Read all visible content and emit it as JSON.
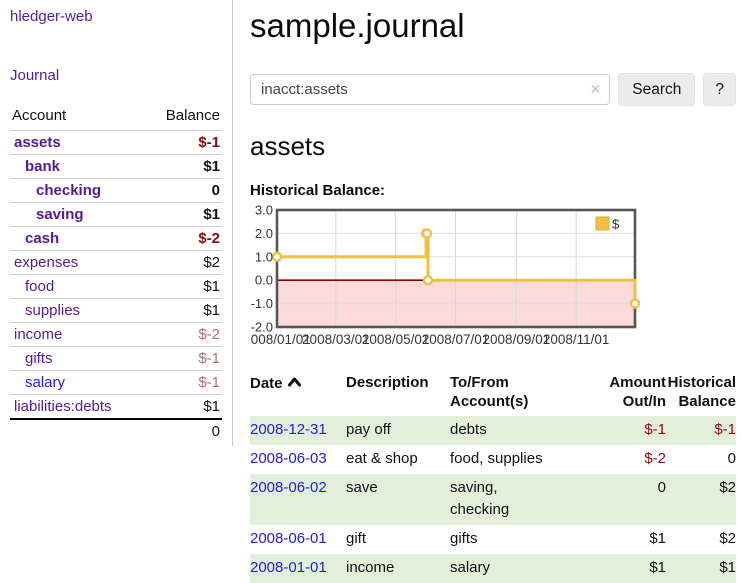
{
  "app": {
    "brand": "hledger-web"
  },
  "colors": {
    "accent_purple": "#551a9b",
    "link_blue": "#2020e0",
    "negative_strong": "#8b0c0c",
    "negative_soft": "#b36b6b",
    "row_stripe_green": "#e2efdb",
    "series_gold": "#edc240",
    "negative_region_pink": "#fbdada",
    "zero_line_red": "#8b0000"
  },
  "sidebar": {
    "nav_journal": "Journal",
    "accounts_table": {
      "header_account": "Account",
      "header_balance": "Balance",
      "rows": [
        {
          "account": "assets",
          "balance": "$-1",
          "indent": 0,
          "bold": true,
          "tone": "neg",
          "link_color": "purple"
        },
        {
          "account": "bank",
          "balance": "$1",
          "indent": 1,
          "bold": true,
          "tone": "pos",
          "link_color": "purple"
        },
        {
          "account": "checking",
          "balance": "0",
          "indent": 2,
          "bold": true,
          "tone": "pos",
          "link_color": "purple"
        },
        {
          "account": "saving",
          "balance": "$1",
          "indent": 2,
          "bold": true,
          "tone": "pos",
          "link_color": "purple"
        },
        {
          "account": "cash",
          "balance": "$-2",
          "indent": 1,
          "bold": true,
          "tone": "neg",
          "link_color": "purple"
        },
        {
          "account": "expenses",
          "balance": "$2",
          "indent": 0,
          "bold": false,
          "tone": "pos",
          "link_color": "purple"
        },
        {
          "account": "food",
          "balance": "$1",
          "indent": 1,
          "bold": false,
          "tone": "pos",
          "link_color": "purple"
        },
        {
          "account": "supplies",
          "balance": "$1",
          "indent": 1,
          "bold": false,
          "tone": "pos",
          "link_color": "purple"
        },
        {
          "account": "income",
          "balance": "$-2",
          "indent": 0,
          "bold": false,
          "tone": "soft",
          "link_color": "purple"
        },
        {
          "account": "gifts",
          "balance": "$-1",
          "indent": 1,
          "bold": false,
          "tone": "soft",
          "link_color": "purple"
        },
        {
          "account": "salary",
          "balance": "$-1",
          "indent": 1,
          "bold": false,
          "tone": "soft",
          "link_color": "blue"
        },
        {
          "account": "liabilities:debts",
          "balance": "$1",
          "indent": 0,
          "bold": false,
          "tone": "pos",
          "link_color": "purple"
        }
      ],
      "total": "0"
    }
  },
  "main": {
    "title": "sample.journal",
    "search": {
      "value": "inacct:assets",
      "clear_icon": "✕",
      "search_button": "Search",
      "help_button": "?"
    },
    "account_heading": "assets",
    "chart_heading": "Historical Balance:",
    "register": {
      "headers": {
        "date": "Date",
        "description": "Description",
        "tofrom": "To/From\nAccount(s)",
        "amount": "Amount\nOut/In",
        "balance": "Historical\nBalance"
      },
      "rows": [
        {
          "date": "2008-12-31",
          "description": "pay off",
          "accounts": "debts",
          "amount": "$-1",
          "balance": "$-1"
        },
        {
          "date": "2008-06-03",
          "description": "eat & shop",
          "accounts": "food, supplies",
          "amount": "$-2",
          "balance": "0"
        },
        {
          "date": "2008-06-02",
          "description": "save",
          "accounts": "saving,\nchecking",
          "amount": "0",
          "balance": "$2"
        },
        {
          "date": "2008-06-01",
          "description": "gift",
          "accounts": "gifts",
          "amount": "$1",
          "balance": "$2"
        },
        {
          "date": "2008-01-01",
          "description": "income",
          "accounts": "salary",
          "amount": "$1",
          "balance": "$1"
        }
      ]
    }
  },
  "chart_data": {
    "type": "line",
    "step": true,
    "title": "Historical Balance:",
    "x_ticks": [
      "2008/01/01",
      "2008/03/01",
      "2008/05/01",
      "2008/07/01",
      "2008/09/01",
      "2008/11/01"
    ],
    "y_ticks": [
      3.0,
      2.0,
      1.0,
      0.0,
      -1.0,
      -2.0
    ],
    "xlim": [
      "2008/01/01",
      "2008/12/31"
    ],
    "ylim": [
      -2.0,
      3.0
    ],
    "grid": true,
    "legend_position": "top-right",
    "negative_region_shaded": true,
    "series": [
      {
        "name": "$",
        "color": "#edc240",
        "points": [
          [
            "2008/01/01",
            1
          ],
          [
            "2008/06/01",
            2
          ],
          [
            "2008/06/02",
            2
          ],
          [
            "2008/06/03",
            0
          ],
          [
            "2008/12/31",
            -1
          ]
        ]
      }
    ]
  }
}
